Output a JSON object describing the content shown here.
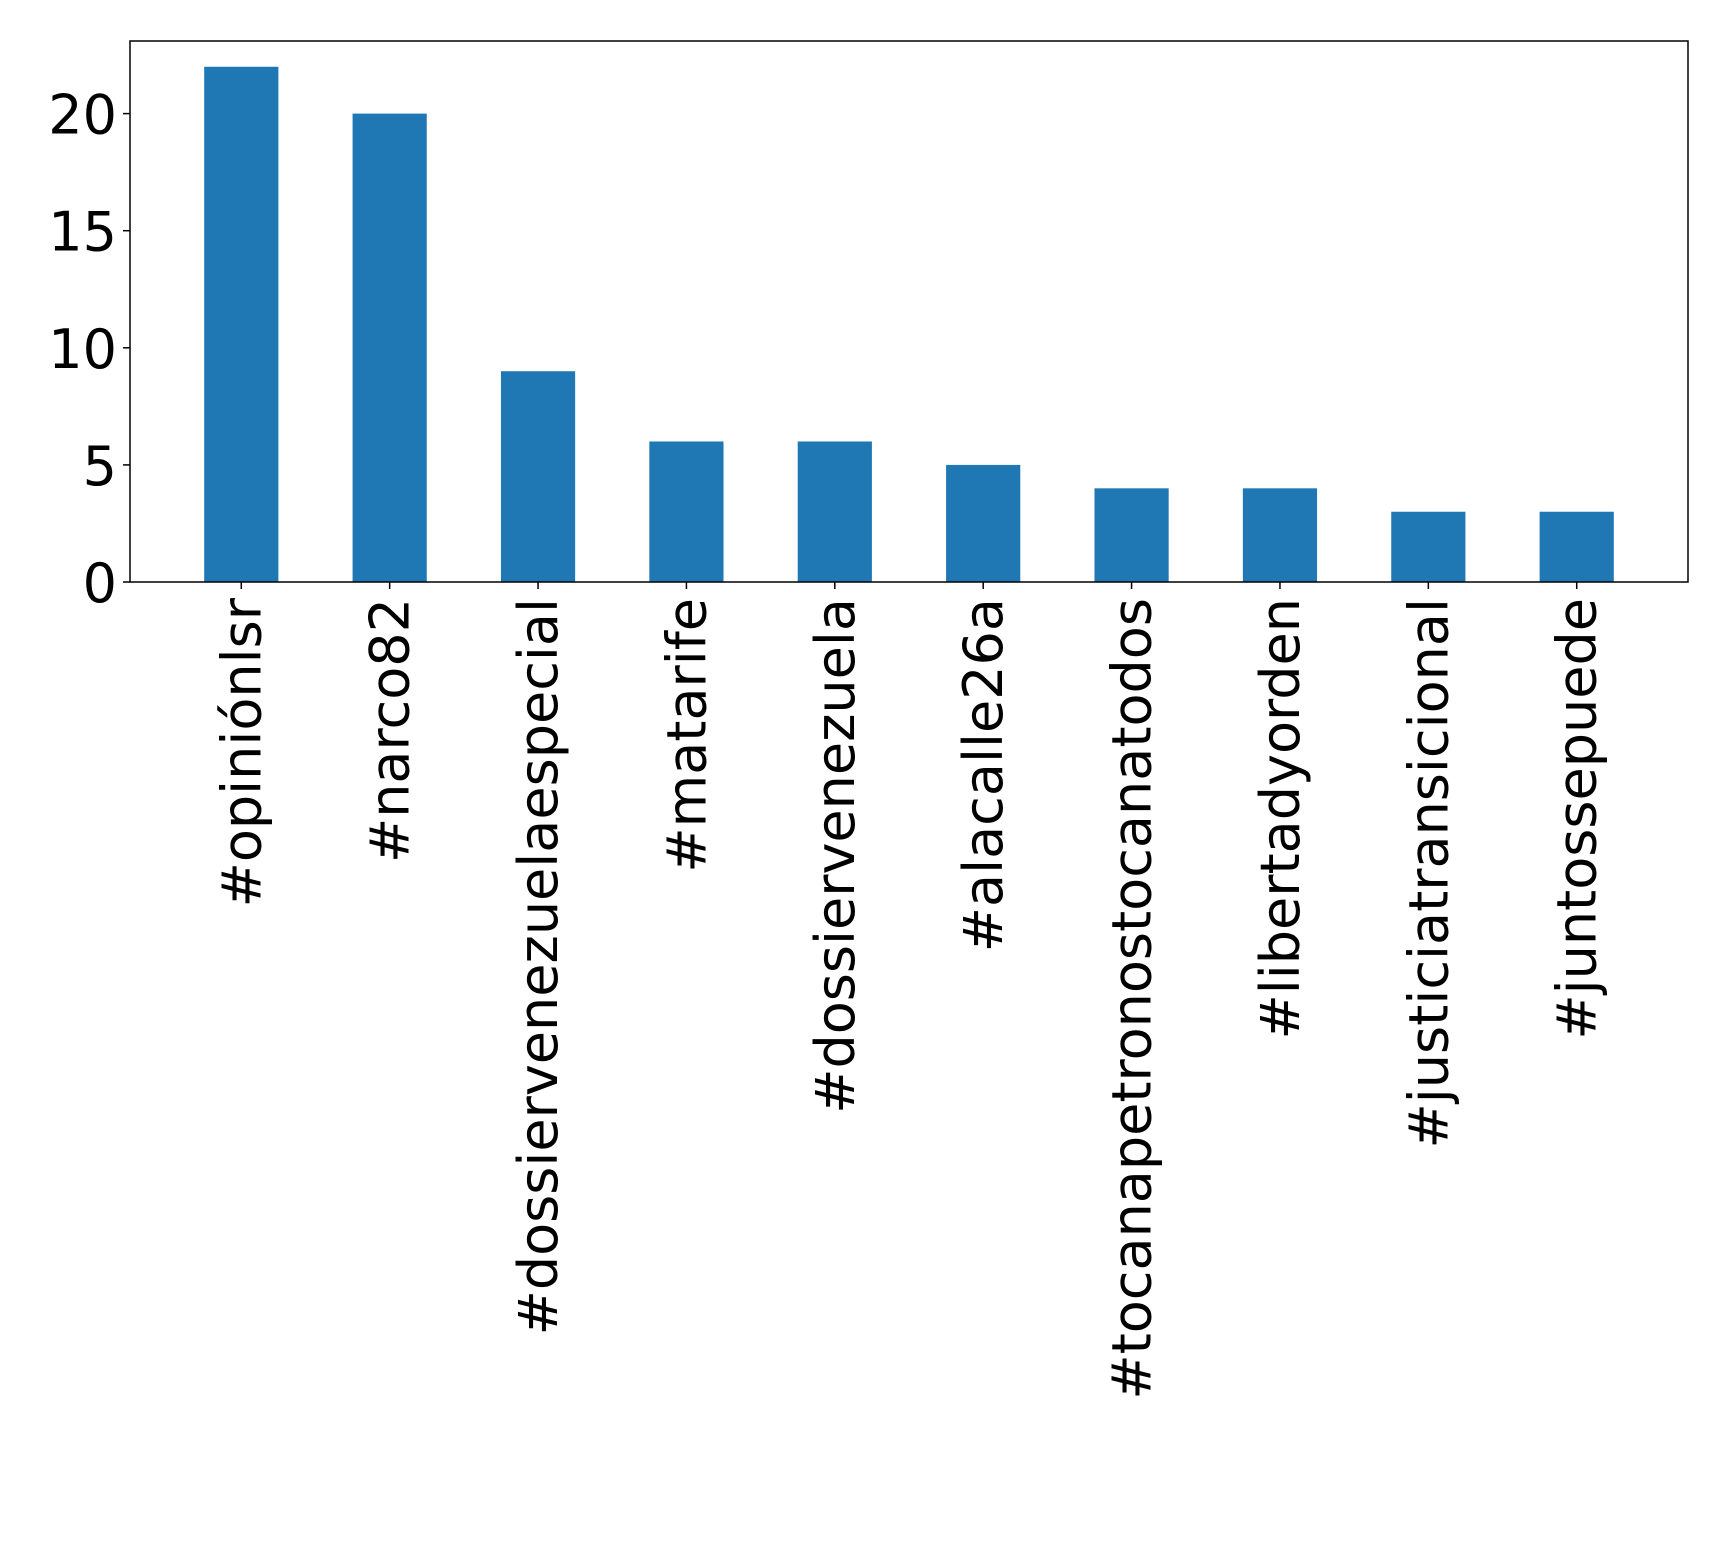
{
  "chart_data": {
    "type": "bar",
    "title": "",
    "xlabel": "",
    "ylabel": "",
    "categories": [
      "#opiniónlsr",
      "#narco82",
      "#dossiervenezuelaespecial",
      "#matarife",
      "#dossiervenezuela",
      "#alacalle26a",
      "#tocanapetronostocanatodos",
      "#libertadyorden",
      "#justiciatransicional",
      "#juntossepuede"
    ],
    "values": [
      22,
      20,
      9,
      6,
      6,
      5,
      4,
      4,
      3,
      3
    ],
    "ylim": [
      0,
      23.1
    ],
    "yticks": [
      0,
      5,
      10,
      15,
      20
    ],
    "grid": false,
    "legend": "none",
    "bar_color": "#1f77b4"
  }
}
